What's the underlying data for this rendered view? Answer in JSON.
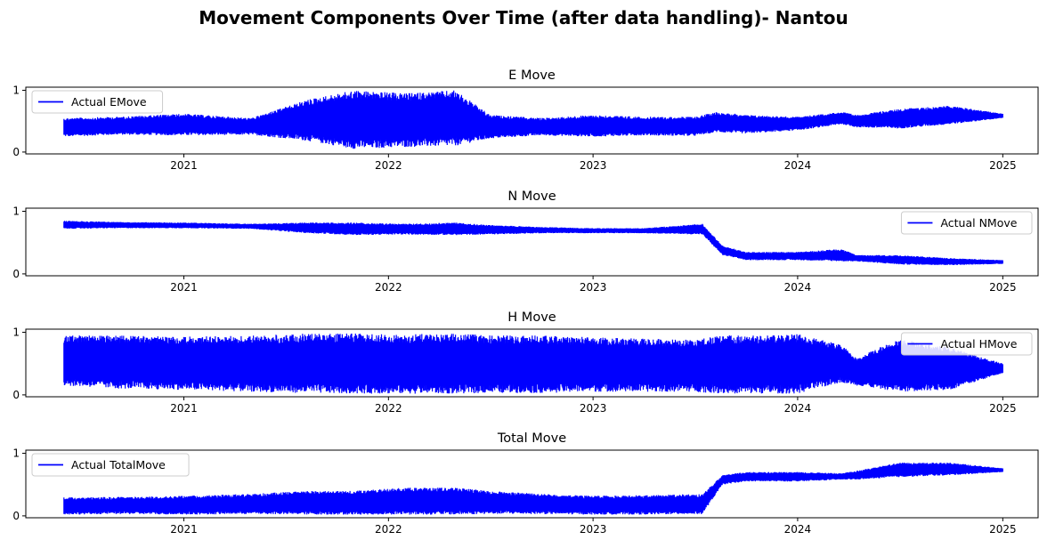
{
  "figure": {
    "title": "Movement Components Over Time (after data handling)- Nantou"
  },
  "colors": {
    "line": "#0000ff",
    "axes": "#000000",
    "background": "#ffffff"
  },
  "chart_data": [
    {
      "type": "line",
      "title": "E Move",
      "xlabel": "",
      "ylabel": "",
      "x_range": [
        "2020-03-25",
        "2025-03-05"
      ],
      "ylim": [
        -0.03,
        1.05
      ],
      "xticks": [
        "2021",
        "2022",
        "2023",
        "2024",
        "2025"
      ],
      "yticks": [
        0,
        1
      ],
      "grid": false,
      "legend": "upper left",
      "series": [
        {
          "name": "Actual EMove",
          "color": "#0000ff",
          "x": [
            "2020-06-01",
            "2020-09-01",
            "2021-01-01",
            "2021-05-01",
            "2021-08-10",
            "2021-11-01",
            "2022-02-01",
            "2022-05-01",
            "2022-07-01",
            "2022-10-01",
            "2023-01-01",
            "2023-04-01",
            "2023-07-01",
            "2023-08-10",
            "2023-10-01",
            "2024-01-01",
            "2024-03-20",
            "2024-04-15",
            "2024-07-01",
            "2024-10-01",
            "2025-01-01"
          ],
          "low": [
            0.25,
            0.28,
            0.27,
            0.28,
            0.18,
            0.05,
            0.08,
            0.1,
            0.22,
            0.27,
            0.25,
            0.27,
            0.26,
            0.32,
            0.3,
            0.35,
            0.45,
            0.4,
            0.38,
            0.45,
            0.55
          ],
          "high": [
            0.55,
            0.57,
            0.62,
            0.55,
            0.85,
            1.0,
            0.95,
            1.0,
            0.6,
            0.55,
            0.6,
            0.57,
            0.57,
            0.65,
            0.6,
            0.57,
            0.65,
            0.6,
            0.7,
            0.75,
            0.62
          ]
        }
      ]
    },
    {
      "type": "line",
      "title": "N Move",
      "xlabel": "",
      "ylabel": "",
      "x_range": [
        "2020-03-25",
        "2025-03-05"
      ],
      "ylim": [
        -0.03,
        1.05
      ],
      "xticks": [
        "2021",
        "2022",
        "2023",
        "2024",
        "2025"
      ],
      "yticks": [
        0,
        1
      ],
      "grid": false,
      "legend": "upper right",
      "series": [
        {
          "name": "Actual NMove",
          "color": "#0000ff",
          "x": [
            "2020-06-01",
            "2020-09-01",
            "2021-01-01",
            "2021-05-01",
            "2021-08-10",
            "2021-11-01",
            "2022-02-01",
            "2022-05-01",
            "2022-07-01",
            "2022-10-01",
            "2023-01-01",
            "2023-04-01",
            "2023-07-15",
            "2023-08-20",
            "2023-10-01",
            "2024-01-01",
            "2024-03-20",
            "2024-04-15",
            "2024-07-01",
            "2024-10-01",
            "2025-01-01"
          ],
          "low": [
            0.72,
            0.73,
            0.73,
            0.72,
            0.65,
            0.62,
            0.63,
            0.62,
            0.63,
            0.65,
            0.65,
            0.65,
            0.63,
            0.3,
            0.22,
            0.22,
            0.2,
            0.2,
            0.15,
            0.14,
            0.16
          ],
          "high": [
            0.85,
            0.83,
            0.82,
            0.8,
            0.82,
            0.82,
            0.8,
            0.82,
            0.78,
            0.75,
            0.73,
            0.73,
            0.8,
            0.45,
            0.35,
            0.35,
            0.4,
            0.3,
            0.3,
            0.25,
            0.22
          ]
        }
      ]
    },
    {
      "type": "line",
      "title": "H Move",
      "xlabel": "",
      "ylabel": "",
      "x_range": [
        "2020-03-25",
        "2025-03-05"
      ],
      "ylim": [
        -0.03,
        1.05
      ],
      "xticks": [
        "2021",
        "2022",
        "2023",
        "2024",
        "2025"
      ],
      "yticks": [
        0,
        1
      ],
      "grid": false,
      "legend": "upper right",
      "series": [
        {
          "name": "Actual HMove",
          "color": "#0000ff",
          "x": [
            "2020-06-01",
            "2020-09-01",
            "2021-01-01",
            "2021-05-01",
            "2021-08-10",
            "2021-11-01",
            "2022-02-01",
            "2022-05-01",
            "2022-07-01",
            "2022-10-01",
            "2023-01-01",
            "2023-04-01",
            "2023-07-01",
            "2023-08-20",
            "2023-10-01",
            "2024-01-01",
            "2024-03-20",
            "2024-04-15",
            "2024-07-01",
            "2024-10-01",
            "2025-01-01"
          ],
          "low": [
            0.15,
            0.1,
            0.08,
            0.05,
            0.03,
            0.02,
            0.02,
            0.02,
            0.03,
            0.03,
            0.05,
            0.05,
            0.05,
            0.02,
            0.02,
            0.02,
            0.2,
            0.15,
            0.05,
            0.08,
            0.35
          ],
          "high": [
            0.95,
            0.95,
            0.93,
            0.95,
            0.98,
            0.98,
            0.97,
            0.98,
            0.95,
            0.95,
            0.92,
            0.9,
            0.88,
            0.95,
            0.95,
            0.97,
            0.8,
            0.6,
            0.9,
            0.75,
            0.5
          ]
        }
      ]
    },
    {
      "type": "line",
      "title": "Total Move",
      "xlabel": "",
      "ylabel": "",
      "x_range": [
        "2020-03-25",
        "2025-03-05"
      ],
      "ylim": [
        -0.03,
        1.05
      ],
      "xticks": [
        "2021",
        "2022",
        "2023",
        "2024",
        "2025"
      ],
      "yticks": [
        0,
        1
      ],
      "grid": false,
      "legend": "upper left",
      "series": [
        {
          "name": "Actual TotalMove",
          "color": "#0000ff",
          "x": [
            "2020-06-01",
            "2020-09-01",
            "2021-01-01",
            "2021-05-01",
            "2021-08-10",
            "2021-11-01",
            "2022-02-01",
            "2022-05-01",
            "2022-07-01",
            "2022-10-01",
            "2023-01-01",
            "2023-04-01",
            "2023-07-15",
            "2023-08-20",
            "2023-10-01",
            "2024-01-01",
            "2024-03-20",
            "2024-04-15",
            "2024-07-01",
            "2024-10-01",
            "2025-01-01"
          ],
          "low": [
            0.02,
            0.03,
            0.02,
            0.03,
            0.02,
            0.02,
            0.02,
            0.02,
            0.03,
            0.03,
            0.02,
            0.02,
            0.03,
            0.5,
            0.55,
            0.55,
            0.58,
            0.58,
            0.62,
            0.65,
            0.7
          ],
          "high": [
            0.3,
            0.3,
            0.32,
            0.35,
            0.4,
            0.4,
            0.45,
            0.45,
            0.4,
            0.35,
            0.32,
            0.33,
            0.35,
            0.65,
            0.7,
            0.7,
            0.68,
            0.72,
            0.85,
            0.85,
            0.76
          ]
        }
      ]
    }
  ]
}
